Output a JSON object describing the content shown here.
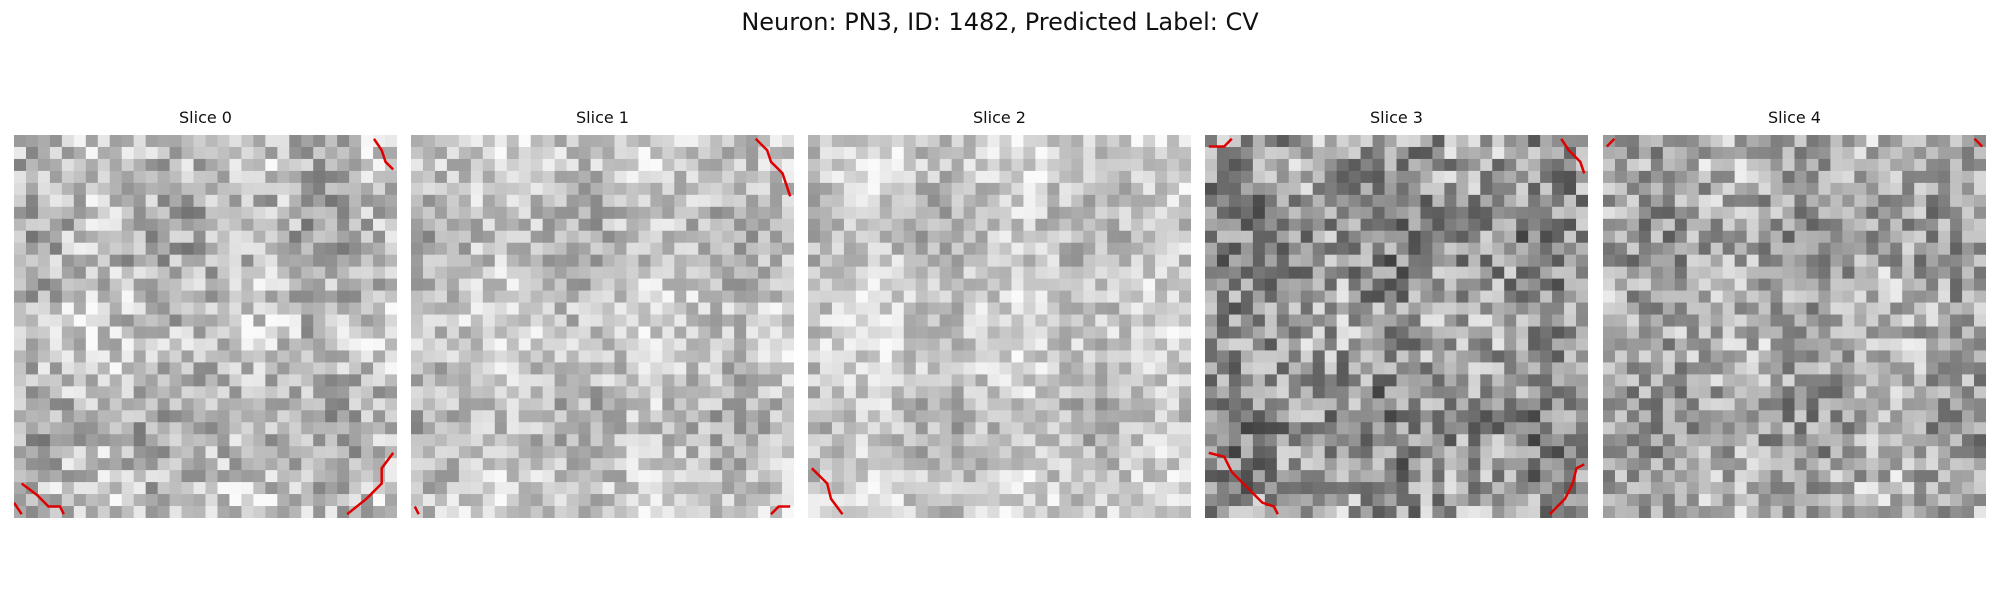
{
  "figure": {
    "title": "Neuron: PN3, ID: 1482, Predicted Label: CV"
  },
  "panels": [
    {
      "title": "Slice 0",
      "seed": 11,
      "base": 185,
      "spread": 55,
      "edge": "#e00000",
      "contours": [
        [
          [
            0.02,
            0.91
          ],
          [
            0.06,
            0.94
          ],
          [
            0.09,
            0.97
          ],
          [
            0.12,
            0.97
          ],
          [
            0.13,
            0.99
          ]
        ],
        [
          [
            0.87,
            0.99
          ],
          [
            0.92,
            0.95
          ],
          [
            0.96,
            0.91
          ],
          [
            0.96,
            0.87
          ],
          [
            0.99,
            0.83
          ]
        ],
        [
          [
            0.94,
            0.01
          ],
          [
            0.96,
            0.04
          ],
          [
            0.97,
            0.07
          ],
          [
            0.99,
            0.09
          ]
        ],
        [
          [
            0.0,
            0.96
          ],
          [
            0.02,
            0.99
          ]
        ]
      ]
    },
    {
      "title": "Slice 1",
      "seed": 23,
      "base": 195,
      "spread": 45,
      "edge": "#e00000",
      "contours": [
        [
          [
            0.9,
            0.01
          ],
          [
            0.93,
            0.04
          ],
          [
            0.94,
            0.07
          ],
          [
            0.97,
            0.1
          ],
          [
            0.99,
            0.16
          ]
        ],
        [
          [
            0.94,
            0.99
          ],
          [
            0.96,
            0.97
          ],
          [
            0.99,
            0.97
          ]
        ],
        [
          [
            0.01,
            0.97
          ],
          [
            0.02,
            0.99
          ]
        ]
      ]
    },
    {
      "title": "Slice 2",
      "seed": 37,
      "base": 198,
      "spread": 42,
      "edge": "#e00000",
      "contours": [
        [
          [
            0.01,
            0.87
          ],
          [
            0.05,
            0.91
          ],
          [
            0.06,
            0.95
          ],
          [
            0.09,
            0.99
          ]
        ]
      ]
    },
    {
      "title": "Slice 3",
      "seed": 41,
      "base": 150,
      "spread": 70,
      "edge": "#e00000",
      "contours": [
        [
          [
            0.01,
            0.83
          ],
          [
            0.05,
            0.84
          ],
          [
            0.07,
            0.88
          ],
          [
            0.11,
            0.92
          ],
          [
            0.15,
            0.96
          ],
          [
            0.18,
            0.97
          ],
          [
            0.19,
            0.99
          ]
        ],
        [
          [
            0.9,
            0.99
          ],
          [
            0.94,
            0.95
          ],
          [
            0.96,
            0.91
          ],
          [
            0.97,
            0.87
          ],
          [
            0.99,
            0.86
          ]
        ],
        [
          [
            0.01,
            0.03
          ],
          [
            0.05,
            0.03
          ],
          [
            0.07,
            0.01
          ]
        ],
        [
          [
            0.93,
            0.01
          ],
          [
            0.95,
            0.04
          ],
          [
            0.98,
            0.07
          ],
          [
            0.99,
            0.1
          ]
        ]
      ]
    },
    {
      "title": "Slice 4",
      "seed": 53,
      "base": 168,
      "spread": 60,
      "edge": "#e00000",
      "contours": [
        [
          [
            0.01,
            0.03
          ],
          [
            0.03,
            0.01
          ]
        ],
        [
          [
            0.97,
            0.01
          ],
          [
            0.99,
            0.03
          ]
        ]
      ]
    }
  ]
}
